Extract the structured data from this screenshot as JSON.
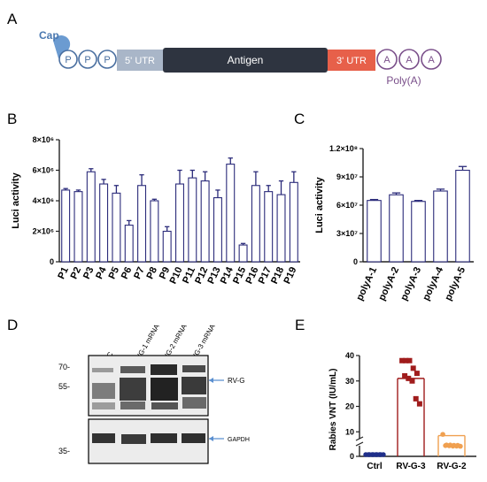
{
  "panels": {
    "a": "A",
    "b": "B",
    "c": "C",
    "d": "D",
    "e": "E"
  },
  "construct": {
    "cap": "Cap",
    "phosphates": [
      "P",
      "P",
      "P"
    ],
    "utr5": "5' UTR",
    "antigen": "Antigen",
    "utr3": "3' UTR",
    "poly_a_circles": [
      "A",
      "A",
      "A"
    ],
    "poly_a_label": "Poly(A)",
    "colors": {
      "cap": "#6b9bd1",
      "utr5": "#a9b6c8",
      "antigen": "#2e3440",
      "utr3": "#e7604a",
      "poly": "#7a4f8a",
      "phosphate": "#4a6fa0"
    }
  },
  "blot": {
    "lanes": [
      "NC",
      "RVG-1 mRNA",
      "RVG-2 mRNA",
      "RVG-3 mRNA"
    ],
    "markers": [
      "70-",
      "55-",
      "35-"
    ],
    "band_labels": [
      "RV-G",
      "GAPDH"
    ]
  },
  "chart_data": [
    {
      "type": "bar",
      "panel": "B",
      "ylabel": "Luci activity",
      "categories": [
        "P1",
        "P2",
        "P3",
        "P4",
        "P5",
        "P6",
        "P7",
        "P8",
        "P9",
        "P10",
        "P11",
        "P12",
        "P13",
        "P14",
        "P15",
        "P16",
        "P17",
        "P18",
        "P19"
      ],
      "values": [
        4.7,
        4.6,
        5.9,
        5.1,
        4.5,
        2.4,
        5.0,
        4.0,
        2.0,
        5.1,
        5.5,
        5.3,
        4.2,
        6.4,
        1.1,
        5.0,
        4.6,
        4.4,
        5.2
      ],
      "errors": [
        0.1,
        0.1,
        0.2,
        0.3,
        0.5,
        0.3,
        0.7,
        0.1,
        0.3,
        0.9,
        0.5,
        0.6,
        0.5,
        0.4,
        0.1,
        0.9,
        0.4,
        0.9,
        0.7
      ],
      "multiplier": "×10^6",
      "ylim": [
        0,
        8
      ],
      "yticks": [
        "0",
        "2×10⁶",
        "4×10⁶",
        "6×10⁶",
        "8×10⁶"
      ],
      "bar_color": "#ffffff",
      "edge_color": "#2b2b7a"
    },
    {
      "type": "bar",
      "panel": "C",
      "ylabel": "Luci activity",
      "categories": [
        "polyA-1",
        "polyA-2",
        "polyA-3",
        "polyA-4",
        "polyA-5"
      ],
      "values": [
        6.5,
        7.1,
        6.4,
        7.5,
        9.7
      ],
      "errors": [
        0.1,
        0.2,
        0.1,
        0.2,
        0.4
      ],
      "multiplier": "×10^7",
      "ylim": [
        0,
        12
      ],
      "yticks": [
        "0",
        "3×10⁷",
        "6×10⁷",
        "9×10⁷",
        "1.2×10⁸"
      ],
      "bar_color": "#ffffff",
      "edge_color": "#2b2b7a"
    },
    {
      "type": "scatter",
      "panel": "E",
      "ylabel": "Rabies VNT (IU/mL)",
      "categories": [
        "Ctrl",
        "RV-G-3",
        "RV-G-2"
      ],
      "yticks": [
        "0",
        "10",
        "20",
        "30",
        "40"
      ],
      "ylim": [
        0,
        40
      ],
      "axis_break": true,
      "series": [
        {
          "name": "Ctrl",
          "color": "#1f2f8a",
          "marker": "circle",
          "values": [
            0.1,
            0.1,
            0.15,
            0.1,
            0.12,
            0.1,
            0.13,
            0.1,
            0.11,
            0.1
          ]
        },
        {
          "name": "RV-G-3",
          "color": "#a01c1c",
          "marker": "square",
          "values": [
            38,
            38,
            38,
            35,
            33,
            32,
            31,
            30,
            23,
            21
          ]
        },
        {
          "name": "RV-G-2",
          "color": "#f0a050",
          "marker": "circle",
          "values": [
            9,
            7,
            7,
            6,
            6,
            5.5,
            5,
            4,
            4,
            3.5
          ]
        }
      ],
      "means": [
        0.1,
        31,
        5.7
      ]
    }
  ]
}
